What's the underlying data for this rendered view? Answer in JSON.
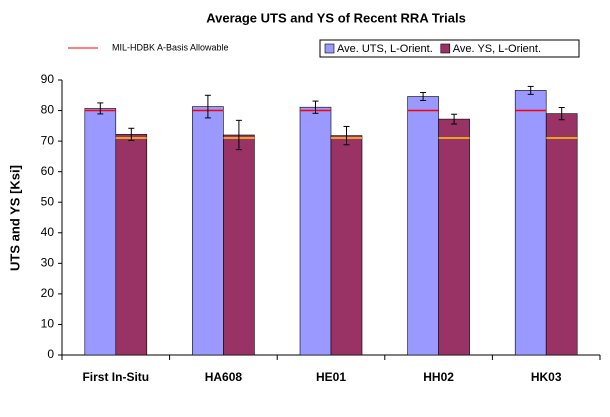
{
  "chart_data": {
    "type": "bar",
    "title": "Average UTS and YS of Recent RRA Trials",
    "y_label": "UTS and YS [Ksi]",
    "categories": [
      "First In-Situ",
      "HA608",
      "HE01",
      "HH02",
      "HK03"
    ],
    "series": [
      {
        "name": "Ave. UTS, L-Orient.",
        "color": "#9999ff",
        "values": [
          80.7,
          81.3,
          81.1,
          84.6,
          86.6
        ],
        "errors": [
          1.8,
          3.7,
          2.0,
          1.3,
          1.3
        ]
      },
      {
        "name": "Ave. YS, L-Orient.",
        "color": "#993366",
        "values": [
          72.2,
          72.0,
          71.8,
          77.2,
          79.0
        ],
        "errors": [
          2.0,
          4.8,
          3.0,
          1.6,
          2.0
        ]
      }
    ],
    "allowable": {
      "name": "MIL-HDBK A-Basis Allowable",
      "colors": [
        "#ff0000",
        "#ffcc00"
      ],
      "values": [
        80,
        71
      ]
    },
    "ylim": [
      0,
      90
    ],
    "yticks": [
      0,
      10,
      20,
      30,
      40,
      50,
      60,
      70,
      80,
      90
    ]
  }
}
